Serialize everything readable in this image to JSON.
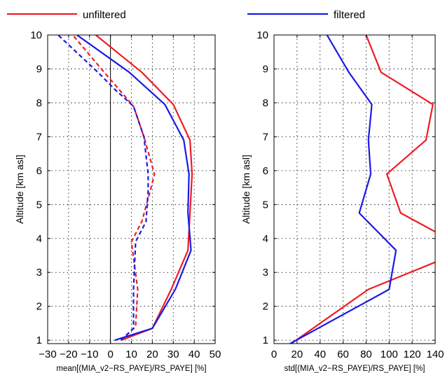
{
  "legend": [
    {
      "label": "unfiltered",
      "color": "#ee1c24"
    },
    {
      "label": "filtered",
      "color": "#1a1ae6"
    }
  ],
  "chart_data": [
    {
      "type": "line",
      "xlabel": "mean[(MIA_v2−RS_PAYE)/RS_PAYE] [%]",
      "ylabel": "Altitude [km asl]",
      "xlim": [
        -30,
        50
      ],
      "ylim": [
        0.9,
        10
      ],
      "xticks": [
        -30,
        -20,
        -10,
        0,
        10,
        20,
        30,
        40,
        50
      ],
      "xtick_labels": [
        "−30",
        "−20",
        "−10",
        "0",
        "10",
        "20",
        "30",
        "40",
        "50"
      ],
      "yticks": [
        1,
        2,
        3,
        4,
        5,
        6,
        7,
        8,
        9,
        10
      ],
      "grid": true,
      "zero_line": true,
      "series": [
        {
          "name": "unfiltered",
          "color": "#ee1c24",
          "dash": false,
          "points": [
            [
              5,
              1
            ],
            [
              20,
              1.35
            ],
            [
              29,
              2.5
            ],
            [
              37,
              3.65
            ],
            [
              38,
              4.75
            ],
            [
              39,
              5.9
            ],
            [
              38,
              6.9
            ],
            [
              30,
              7.95
            ],
            [
              15,
              8.9
            ],
            [
              -7,
              10
            ]
          ]
        },
        {
          "name": "filtered",
          "color": "#1a1ae6",
          "dash": false,
          "points": [
            [
              2,
              1
            ],
            [
              20,
              1.35
            ],
            [
              31,
              2.5
            ],
            [
              38.5,
              3.65
            ],
            [
              37,
              4.75
            ],
            [
              37.5,
              5.9
            ],
            [
              35,
              6.9
            ],
            [
              26,
              7.95
            ],
            [
              9,
              8.9
            ],
            [
              -16,
              10
            ]
          ]
        },
        {
          "name": "unfiltered",
          "color": "#ee1c24",
          "dash": true,
          "points": [
            [
              5,
              1
            ],
            [
              12,
              1.4
            ],
            [
              13,
              2.5
            ],
            [
              10,
              3.9
            ],
            [
              15,
              4.5
            ],
            [
              19,
              5.4
            ],
            [
              21,
              5.9
            ],
            [
              16,
              7
            ],
            [
              11,
              7.9
            ],
            [
              4,
              8.4
            ],
            [
              -3,
              8.9
            ],
            [
              -18,
              10
            ]
          ]
        },
        {
          "name": "filtered",
          "color": "#1a1ae6",
          "dash": true,
          "points": [
            [
              5,
              1
            ],
            [
              11,
              1.35
            ],
            [
              11,
              2.5
            ],
            [
              12,
              3.9
            ],
            [
              17,
              4.5
            ],
            [
              18,
              5.4
            ],
            [
              18,
              5.9
            ],
            [
              16,
              7
            ],
            [
              11,
              7.9
            ],
            [
              2,
              8.4
            ],
            [
              -6,
              8.9
            ],
            [
              -25,
              10
            ]
          ]
        }
      ]
    },
    {
      "type": "line",
      "xlabel": "std[(MIA_v2−RS_PAYE)/RS_PAYE] [%]",
      "ylabel": "Altitude [km asl]",
      "xlim": [
        0,
        140
      ],
      "ylim": [
        0.9,
        10
      ],
      "xticks": [
        0,
        20,
        40,
        60,
        80,
        100,
        120,
        140
      ],
      "xtick_labels": [
        "0",
        "20",
        "40",
        "60",
        "80",
        "100",
        "120",
        "140"
      ],
      "yticks": [
        1,
        2,
        3,
        4,
        5,
        6,
        7,
        8,
        9,
        10
      ],
      "grid": true,
      "series": [
        {
          "name": "unfiltered",
          "color": "#ee1c24",
          "dash": false,
          "points": [
            [
              15,
              0.9
            ],
            [
              82,
              2.5
            ],
            [
              140,
              3.3
            ],
            [
              null,
              null
            ],
            [
              140,
              4.2
            ],
            [
              110,
              4.75
            ],
            [
              98,
              5.9
            ],
            [
              132,
              6.9
            ],
            [
              138,
              7.95
            ],
            [
              93,
              8.9
            ],
            [
              80,
              10
            ]
          ]
        },
        {
          "name": "filtered",
          "color": "#1a1ae6",
          "dash": false,
          "points": [
            [
              14,
              0.9
            ],
            [
              100,
              2.5
            ],
            [
              106,
              3.65
            ],
            [
              74,
              4.75
            ],
            [
              84,
              5.9
            ],
            [
              82,
              6.9
            ],
            [
              85,
              7.95
            ],
            [
              65,
              8.9
            ],
            [
              46,
              10
            ]
          ]
        }
      ]
    }
  ]
}
